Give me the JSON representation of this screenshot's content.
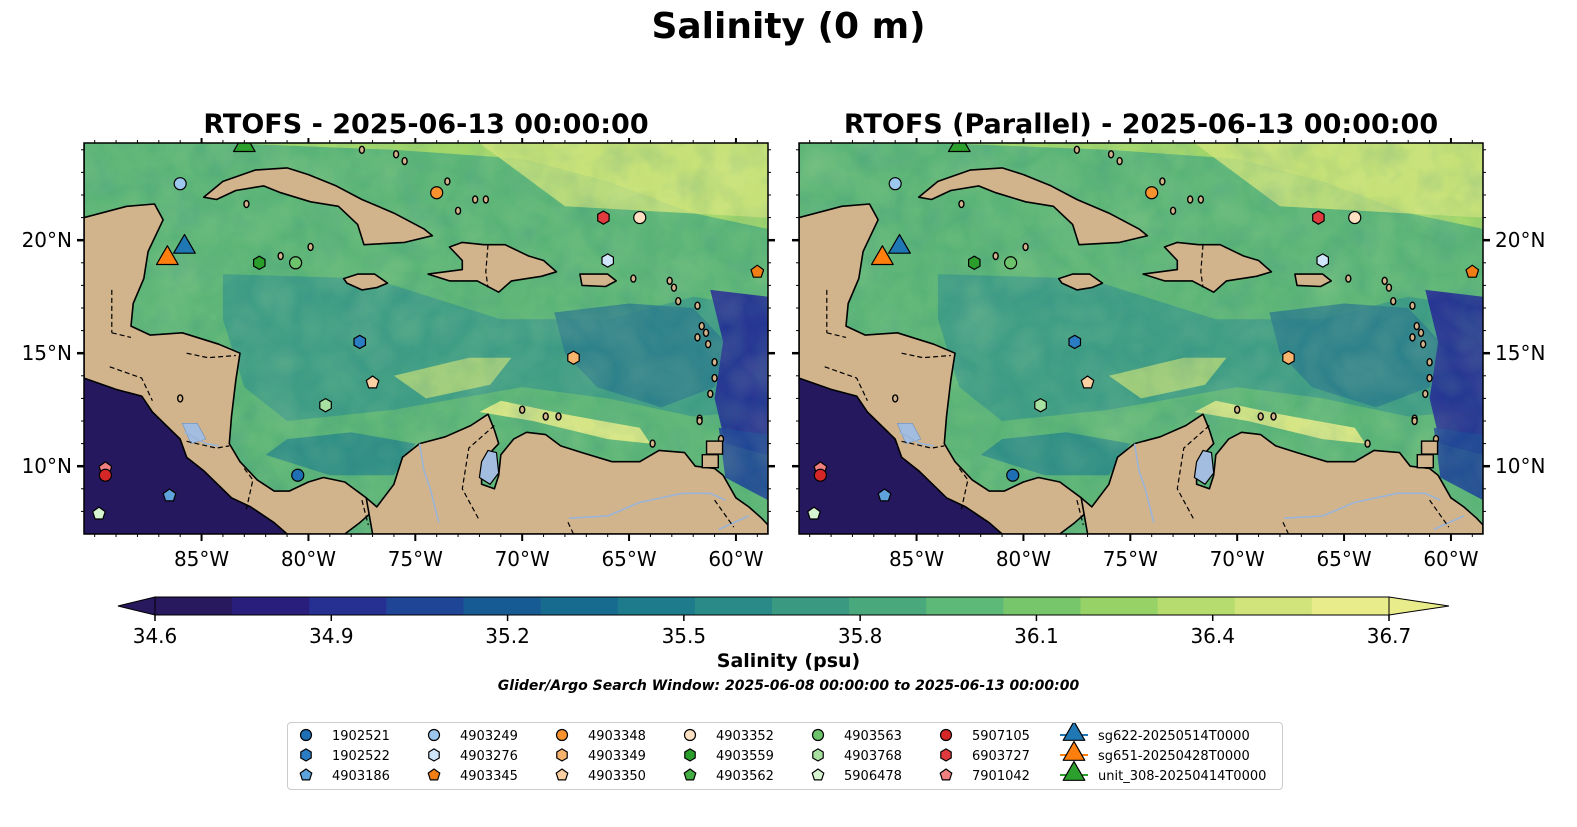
{
  "figure": {
    "title": "Salinity (0 m)",
    "search_window": "Glider/Argo Search Window: 2025-06-08 00:00:00 to 2025-06-13 00:00:00"
  },
  "panels": [
    {
      "title": "RTOFS - 2025-06-13 00:00:00",
      "variant": "primary"
    },
    {
      "title": "RTOFS (Parallel) - 2025-06-13 00:00:00",
      "variant": "parallel"
    }
  ],
  "map": {
    "lon_range": [
      -90.5,
      -58.5
    ],
    "lat_range": [
      7,
      24.3
    ],
    "lon_ticks": [
      {
        "lon": -85,
        "label": "85°W"
      },
      {
        "lon": -80,
        "label": "80°W"
      },
      {
        "lon": -75,
        "label": "75°W"
      },
      {
        "lon": -70,
        "label": "70°W"
      },
      {
        "lon": -65,
        "label": "65°W"
      },
      {
        "lon": -60,
        "label": "60°W"
      }
    ],
    "lat_ticks": [
      {
        "lat": 10,
        "label": "10°N"
      },
      {
        "lat": 15,
        "label": "15°N"
      },
      {
        "lat": 20,
        "label": "20°N"
      }
    ],
    "colors": {
      "land": "#d2b48c",
      "lake": "#a3bde0",
      "river": "#9ab4d8",
      "deep_pacific": "#26185e"
    }
  },
  "colorbar": {
    "label": "Salinity (psu)",
    "min": 34.6,
    "max": 36.7,
    "ticks": [
      "34.6",
      "34.9",
      "35.2",
      "35.5",
      "35.8",
      "36.1",
      "36.4",
      "36.7"
    ],
    "colors": [
      "#28185e",
      "#2a1e7c",
      "#263092",
      "#1f4597",
      "#175b94",
      "#176b8e",
      "#1e7b8b",
      "#2a8a87",
      "#3a9a81",
      "#4aa97c",
      "#5db977",
      "#78c66b",
      "#96d266",
      "#b6dc70",
      "#d1e47c",
      "#e9ec8a"
    ]
  },
  "legend": {
    "entries": [
      {
        "label": "1902521",
        "shape": "circle",
        "color": "#1f6fb5"
      },
      {
        "label": "1902522",
        "shape": "hexagon",
        "color": "#2b7cc2"
      },
      {
        "label": "4903186",
        "shape": "pentagon",
        "color": "#5fa3dc"
      },
      {
        "label": "4903249",
        "shape": "circle",
        "color": "#9dc8ee"
      },
      {
        "label": "4903276",
        "shape": "hexagon",
        "color": "#cfe6fa"
      },
      {
        "label": "4903345",
        "shape": "pentagon",
        "color": "#f07e14"
      },
      {
        "label": "4903348",
        "shape": "circle",
        "color": "#f7922e"
      },
      {
        "label": "4903349",
        "shape": "hexagon",
        "color": "#f8b36d"
      },
      {
        "label": "4903350",
        "shape": "pentagon",
        "color": "#fbd0a2"
      },
      {
        "label": "4903352",
        "shape": "circle",
        "color": "#fde0c2"
      },
      {
        "label": "4903559",
        "shape": "hexagon",
        "color": "#2a9d2a"
      },
      {
        "label": "4903562",
        "shape": "pentagon",
        "color": "#43ad43"
      },
      {
        "label": "4903563",
        "shape": "circle",
        "color": "#6cc36c"
      },
      {
        "label": "4903768",
        "shape": "hexagon",
        "color": "#a8e0a2"
      },
      {
        "label": "5906478",
        "shape": "pentagon",
        "color": "#d8f5d2"
      },
      {
        "label": "5907105",
        "shape": "circle",
        "color": "#d62728"
      },
      {
        "label": "6903727",
        "shape": "hexagon",
        "color": "#e0393e"
      },
      {
        "label": "7901042",
        "shape": "pentagon",
        "color": "#f08080"
      },
      {
        "label": "sg622-20250514T0000",
        "shape": "triangle",
        "color": "#1f77b4"
      },
      {
        "label": "sg651-20250428T0000",
        "shape": "triangle",
        "color": "#ff7f0e"
      },
      {
        "label": "unit_308-20250414T0000",
        "shape": "triangle",
        "color": "#2ca02c"
      }
    ]
  },
  "observations": [
    {
      "id": "4903249",
      "lon": -86.0,
      "lat": 22.5
    },
    {
      "id": "4903348",
      "lon": -74.0,
      "lat": 22.1
    },
    {
      "id": "6903727",
      "lon": -66.2,
      "lat": 21.0
    },
    {
      "id": "4903352",
      "lon": -64.5,
      "lat": 21.0
    },
    {
      "id": "4903276",
      "lon": -66.0,
      "lat": 19.1
    },
    {
      "id": "4903559",
      "lon": -82.3,
      "lat": 19.0
    },
    {
      "id": "4903563",
      "lon": -80.6,
      "lat": 19.0
    },
    {
      "id": "4903345",
      "lon": -59.0,
      "lat": 18.6
    },
    {
      "id": "1902522",
      "lon": -77.6,
      "lat": 15.5
    },
    {
      "id": "4903349",
      "lon": -67.6,
      "lat": 14.8
    },
    {
      "id": "4903350",
      "lon": -77.0,
      "lat": 13.7
    },
    {
      "id": "4903768",
      "lon": -79.2,
      "lat": 12.7
    },
    {
      "id": "1902521",
      "lon": -80.5,
      "lat": 9.6
    },
    {
      "id": "7901042",
      "lon": -89.5,
      "lat": 9.9
    },
    {
      "id": "5907105",
      "lon": -89.5,
      "lat": 9.6
    },
    {
      "id": "4903186",
      "lon": -86.5,
      "lat": 8.7
    },
    {
      "id": "5906478",
      "lon": -89.8,
      "lat": 7.9
    },
    {
      "id": "unit_308-20250414T0000",
      "lon": -83.0,
      "lat": 24.2,
      "big": true
    },
    {
      "id": "sg622-20250514T0000",
      "lon": -85.8,
      "lat": 19.7,
      "big": true
    },
    {
      "id": "sg651-20250428T0000",
      "lon": -86.6,
      "lat": 19.2,
      "big": true
    }
  ]
}
